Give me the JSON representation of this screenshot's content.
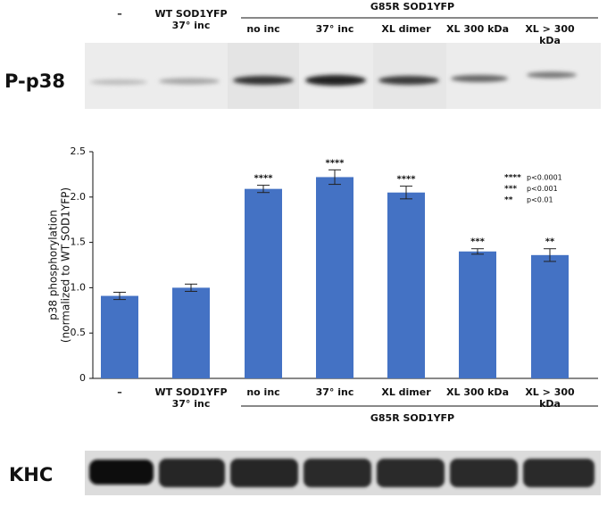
{
  "chart_data": {
    "type": "bar",
    "categories": [
      "–",
      "WT SOD1YFP\n37° inc",
      "no inc",
      "37° inc",
      "XL dimer",
      "XL 300 kDa",
      "XL > 300 kDa"
    ],
    "group_label": "G85R SOD1YFP",
    "values": [
      0.91,
      1.0,
      2.09,
      2.22,
      2.05,
      1.4,
      1.36
    ],
    "errors": [
      0.04,
      0.04,
      0.04,
      0.08,
      0.07,
      0.03,
      0.07
    ],
    "significance": [
      null,
      null,
      "****",
      "****",
      "****",
      "***",
      "**"
    ],
    "significance_legend": [
      {
        "stars": "****",
        "p": "p<0.0001"
      },
      {
        "stars": "***",
        "p": "p<0.001"
      },
      {
        "stars": "**",
        "p": "p<0.01"
      }
    ],
    "color": "#4472c4",
    "ylabel": [
      "p38 phosphorylation",
      "(normalized to WT SOD1YFP)"
    ],
    "ylim": [
      0,
      2.5
    ],
    "yticks": [
      0,
      0.5,
      {
        "value": 1,
        "label": "1.0"
      },
      1.5,
      {
        "value": 2,
        "label": "2.0"
      },
      2.5
    ]
  },
  "blots": [
    {
      "label": "P-p38"
    },
    {
      "label": "KHC"
    }
  ]
}
